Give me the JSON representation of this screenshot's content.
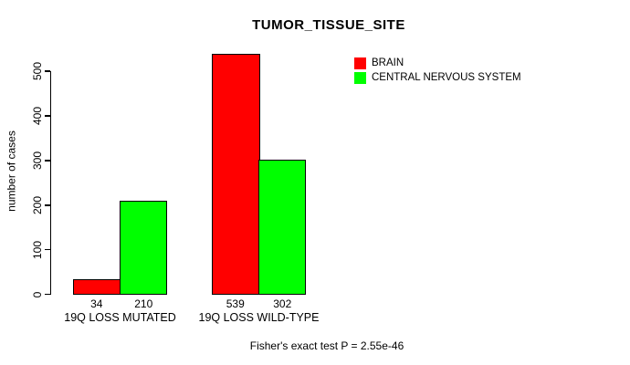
{
  "chart_data": {
    "type": "bar",
    "title": "TUMOR_TISSUE_SITE",
    "xlabel": "",
    "ylabel": "number of cases",
    "categories": [
      "19Q LOSS MUTATED",
      "19Q LOSS WILD-TYPE"
    ],
    "series": [
      {
        "name": "BRAIN",
        "color": "#ff0000",
        "values": [
          34,
          539
        ]
      },
      {
        "name": "CENTRAL NERVOUS SYSTEM",
        "color": "#00ff00",
        "values": [
          210,
          302
        ]
      }
    ],
    "bar_value_labels": [
      [
        "34",
        "210"
      ],
      [
        "539",
        "302"
      ]
    ],
    "y_ticks": [
      "0",
      "100",
      "200",
      "300",
      "400",
      "500"
    ],
    "ylim": [
      0,
      500
    ],
    "grid": false,
    "legend_position": "top-right",
    "annotation": "Fisher's exact test P = 2.55e-46",
    "colors": {
      "background": "#ffffff",
      "axis": "#000000",
      "text": "#000000",
      "brain": "#ff0000",
      "central_nervous_system": "#00ff00"
    }
  }
}
